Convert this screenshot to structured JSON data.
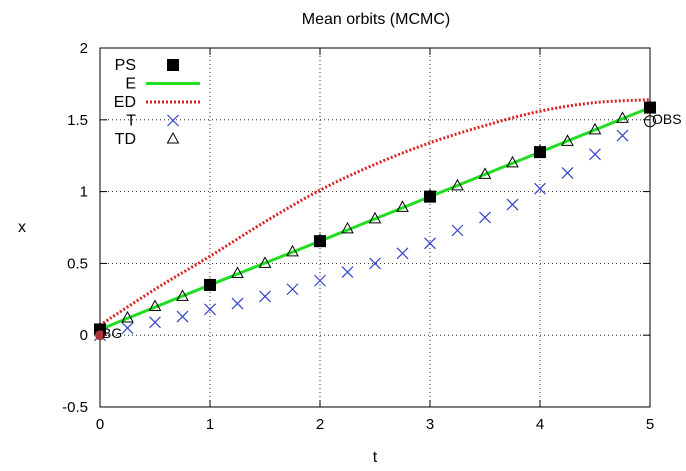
{
  "chart_data": {
    "type": "line",
    "title": "Mean orbits (MCMC)",
    "xlabel": "t",
    "ylabel": "x",
    "xlim": [
      0,
      5
    ],
    "ylim": [
      -0.5,
      2
    ],
    "xticks": [
      "0",
      "1",
      "2",
      "3",
      "4",
      "5"
    ],
    "yticks": [
      "-0.5",
      "0",
      "0.5",
      "1",
      "1.5",
      "2"
    ],
    "grid": true,
    "legend_position": "top-left",
    "series": [
      {
        "name": "PS",
        "style": "filled-square",
        "color": "#000000",
        "x": [
          0,
          1,
          2,
          3,
          4,
          5
        ],
        "y": [
          0.04,
          0.35,
          0.655,
          0.965,
          1.275,
          1.585
        ]
      },
      {
        "name": "E",
        "style": "solid-line",
        "color": "#22dd22",
        "x": [
          0,
          1,
          2,
          3,
          4,
          5
        ],
        "y": [
          0.04,
          0.35,
          0.655,
          0.965,
          1.275,
          1.585
        ]
      },
      {
        "name": "ED",
        "style": "dotted-line",
        "color": "#dd2222",
        "x": [
          0,
          0.5,
          1,
          1.5,
          2,
          2.5,
          3,
          3.5,
          4,
          4.5,
          5
        ],
        "y": [
          0.07,
          0.32,
          0.55,
          0.79,
          1.01,
          1.19,
          1.34,
          1.46,
          1.56,
          1.62,
          1.64
        ]
      },
      {
        "name": "T",
        "style": "cross",
        "color": "#3344cc",
        "x": [
          0,
          0.25,
          0.5,
          0.75,
          1,
          1.25,
          1.5,
          1.75,
          2,
          2.25,
          2.5,
          2.75,
          3,
          3.25,
          3.5,
          3.75,
          4,
          4.25,
          4.5,
          4.75
        ],
        "y": [
          0.0,
          0.05,
          0.09,
          0.13,
          0.18,
          0.22,
          0.27,
          0.32,
          0.38,
          0.44,
          0.5,
          0.57,
          0.64,
          0.73,
          0.82,
          0.91,
          1.02,
          1.13,
          1.26,
          1.39
        ]
      },
      {
        "name": "TD",
        "style": "open-triangle",
        "color": "#000000",
        "x": [
          0,
          0.25,
          0.5,
          0.75,
          1,
          1.25,
          1.5,
          1.75,
          2,
          2.25,
          2.5,
          2.75,
          3,
          3.25,
          3.5,
          3.75,
          4,
          4.25,
          4.5,
          4.75,
          5
        ],
        "y": [
          0.04,
          0.12,
          0.2,
          0.27,
          0.35,
          0.43,
          0.5,
          0.58,
          0.66,
          0.74,
          0.81,
          0.89,
          0.97,
          1.04,
          1.12,
          1.2,
          1.28,
          1.35,
          1.43,
          1.51,
          1.59
        ]
      }
    ],
    "annotations": [
      {
        "text": "BG",
        "x": 0,
        "y": 0,
        "marker": "filled-circle",
        "color": "#aa3333"
      },
      {
        "text": "OBS",
        "x": 5,
        "y": 1.49,
        "marker": "open-circle",
        "color": "#000000"
      }
    ]
  }
}
